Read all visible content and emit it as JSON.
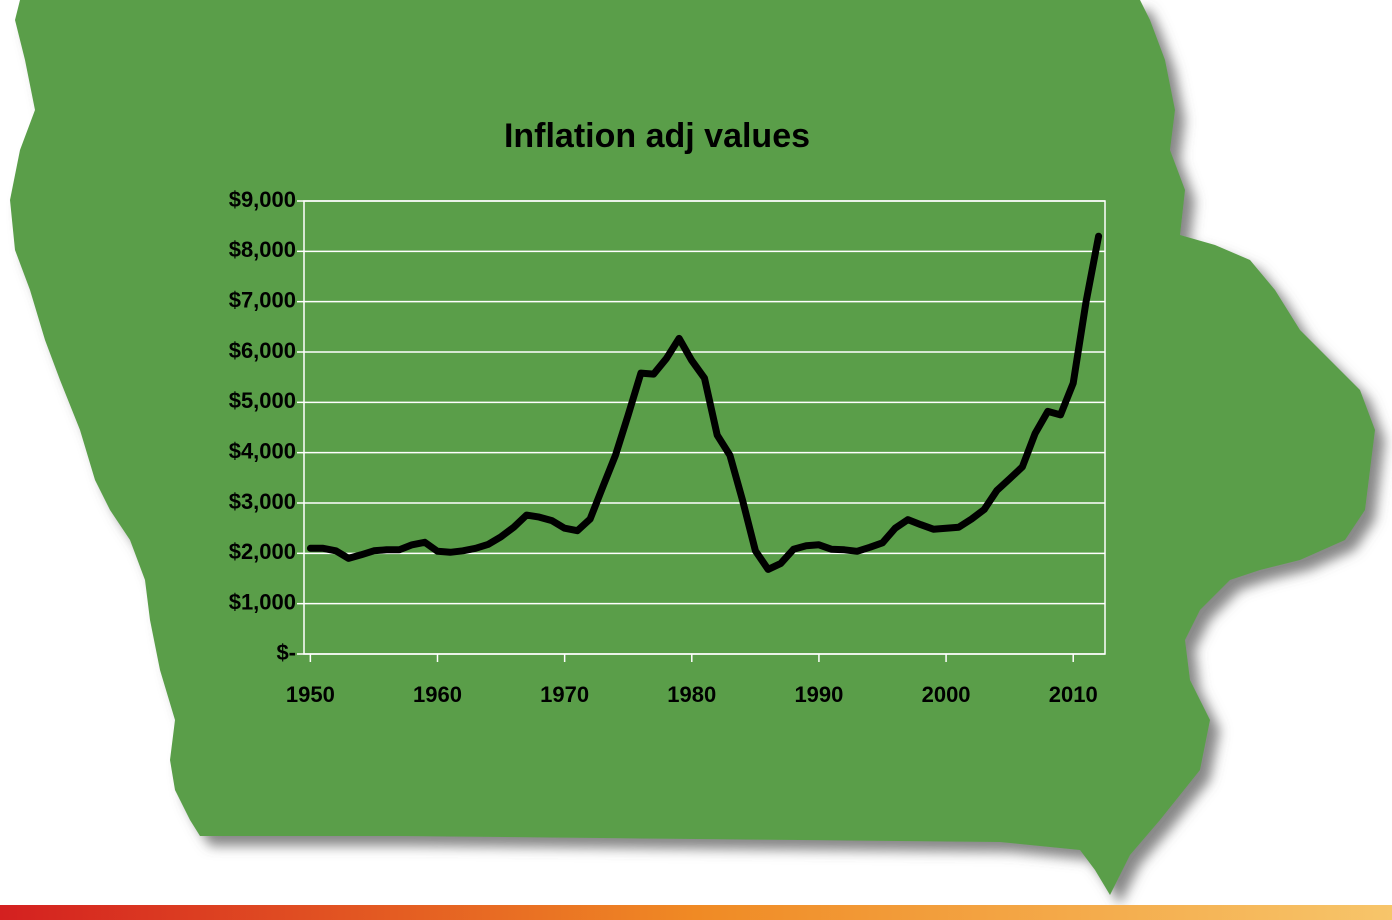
{
  "chart_data": {
    "type": "line",
    "title": "Inflation adj values",
    "x": [
      1950,
      1951,
      1952,
      1953,
      1954,
      1955,
      1956,
      1957,
      1958,
      1959,
      1960,
      1961,
      1962,
      1963,
      1964,
      1965,
      1966,
      1967,
      1968,
      1969,
      1970,
      1971,
      1972,
      1973,
      1974,
      1975,
      1976,
      1977,
      1978,
      1979,
      1980,
      1981,
      1982,
      1983,
      1984,
      1985,
      1986,
      1987,
      1988,
      1989,
      1990,
      1991,
      1992,
      1993,
      1994,
      1995,
      1996,
      1997,
      1998,
      1999,
      2000,
      2001,
      2002,
      2003,
      2004,
      2005,
      2006,
      2007,
      2008,
      2009,
      2010,
      2011,
      2012
    ],
    "series": [
      {
        "color": "#000000",
        "values": [
          2100,
          2100,
          2050,
          1900,
          1970,
          2050,
          2070,
          2070,
          2170,
          2220,
          2040,
          2020,
          2050,
          2100,
          2180,
          2330,
          2520,
          2760,
          2720,
          2650,
          2500,
          2450,
          2680,
          3320,
          3950,
          4750,
          5580,
          5560,
          5870,
          6270,
          5830,
          5480,
          4350,
          3950,
          3050,
          2050,
          1680,
          1800,
          2080,
          2150,
          2170,
          2080,
          2070,
          2040,
          2120,
          2210,
          2500,
          2670,
          2570,
          2480,
          2500,
          2520,
          2680,
          2870,
          3250,
          3480,
          3720,
          4380,
          4820,
          4750,
          5380,
          6980,
          8300
        ]
      }
    ],
    "xlim": [
      1949.5,
      2012.5
    ],
    "xticks": [
      1950,
      1960,
      1970,
      1980,
      1990,
      2000,
      2010
    ],
    "ylim": [
      0,
      9000
    ],
    "yticks": [
      {
        "value": 0,
        "label": "$-"
      },
      {
        "value": 1000,
        "label": "$1,000"
      },
      {
        "value": 2000,
        "label": "$2,000"
      },
      {
        "value": 3000,
        "label": "$3,000"
      },
      {
        "value": 4000,
        "label": "$4,000"
      },
      {
        "value": 5000,
        "label": "$5,000"
      },
      {
        "value": 6000,
        "label": "$6,000"
      },
      {
        "value": 7000,
        "label": "$7,000"
      },
      {
        "value": 8000,
        "label": "$8,000"
      },
      {
        "value": 9000,
        "label": "$9,000"
      }
    ],
    "grid": true
  }
}
